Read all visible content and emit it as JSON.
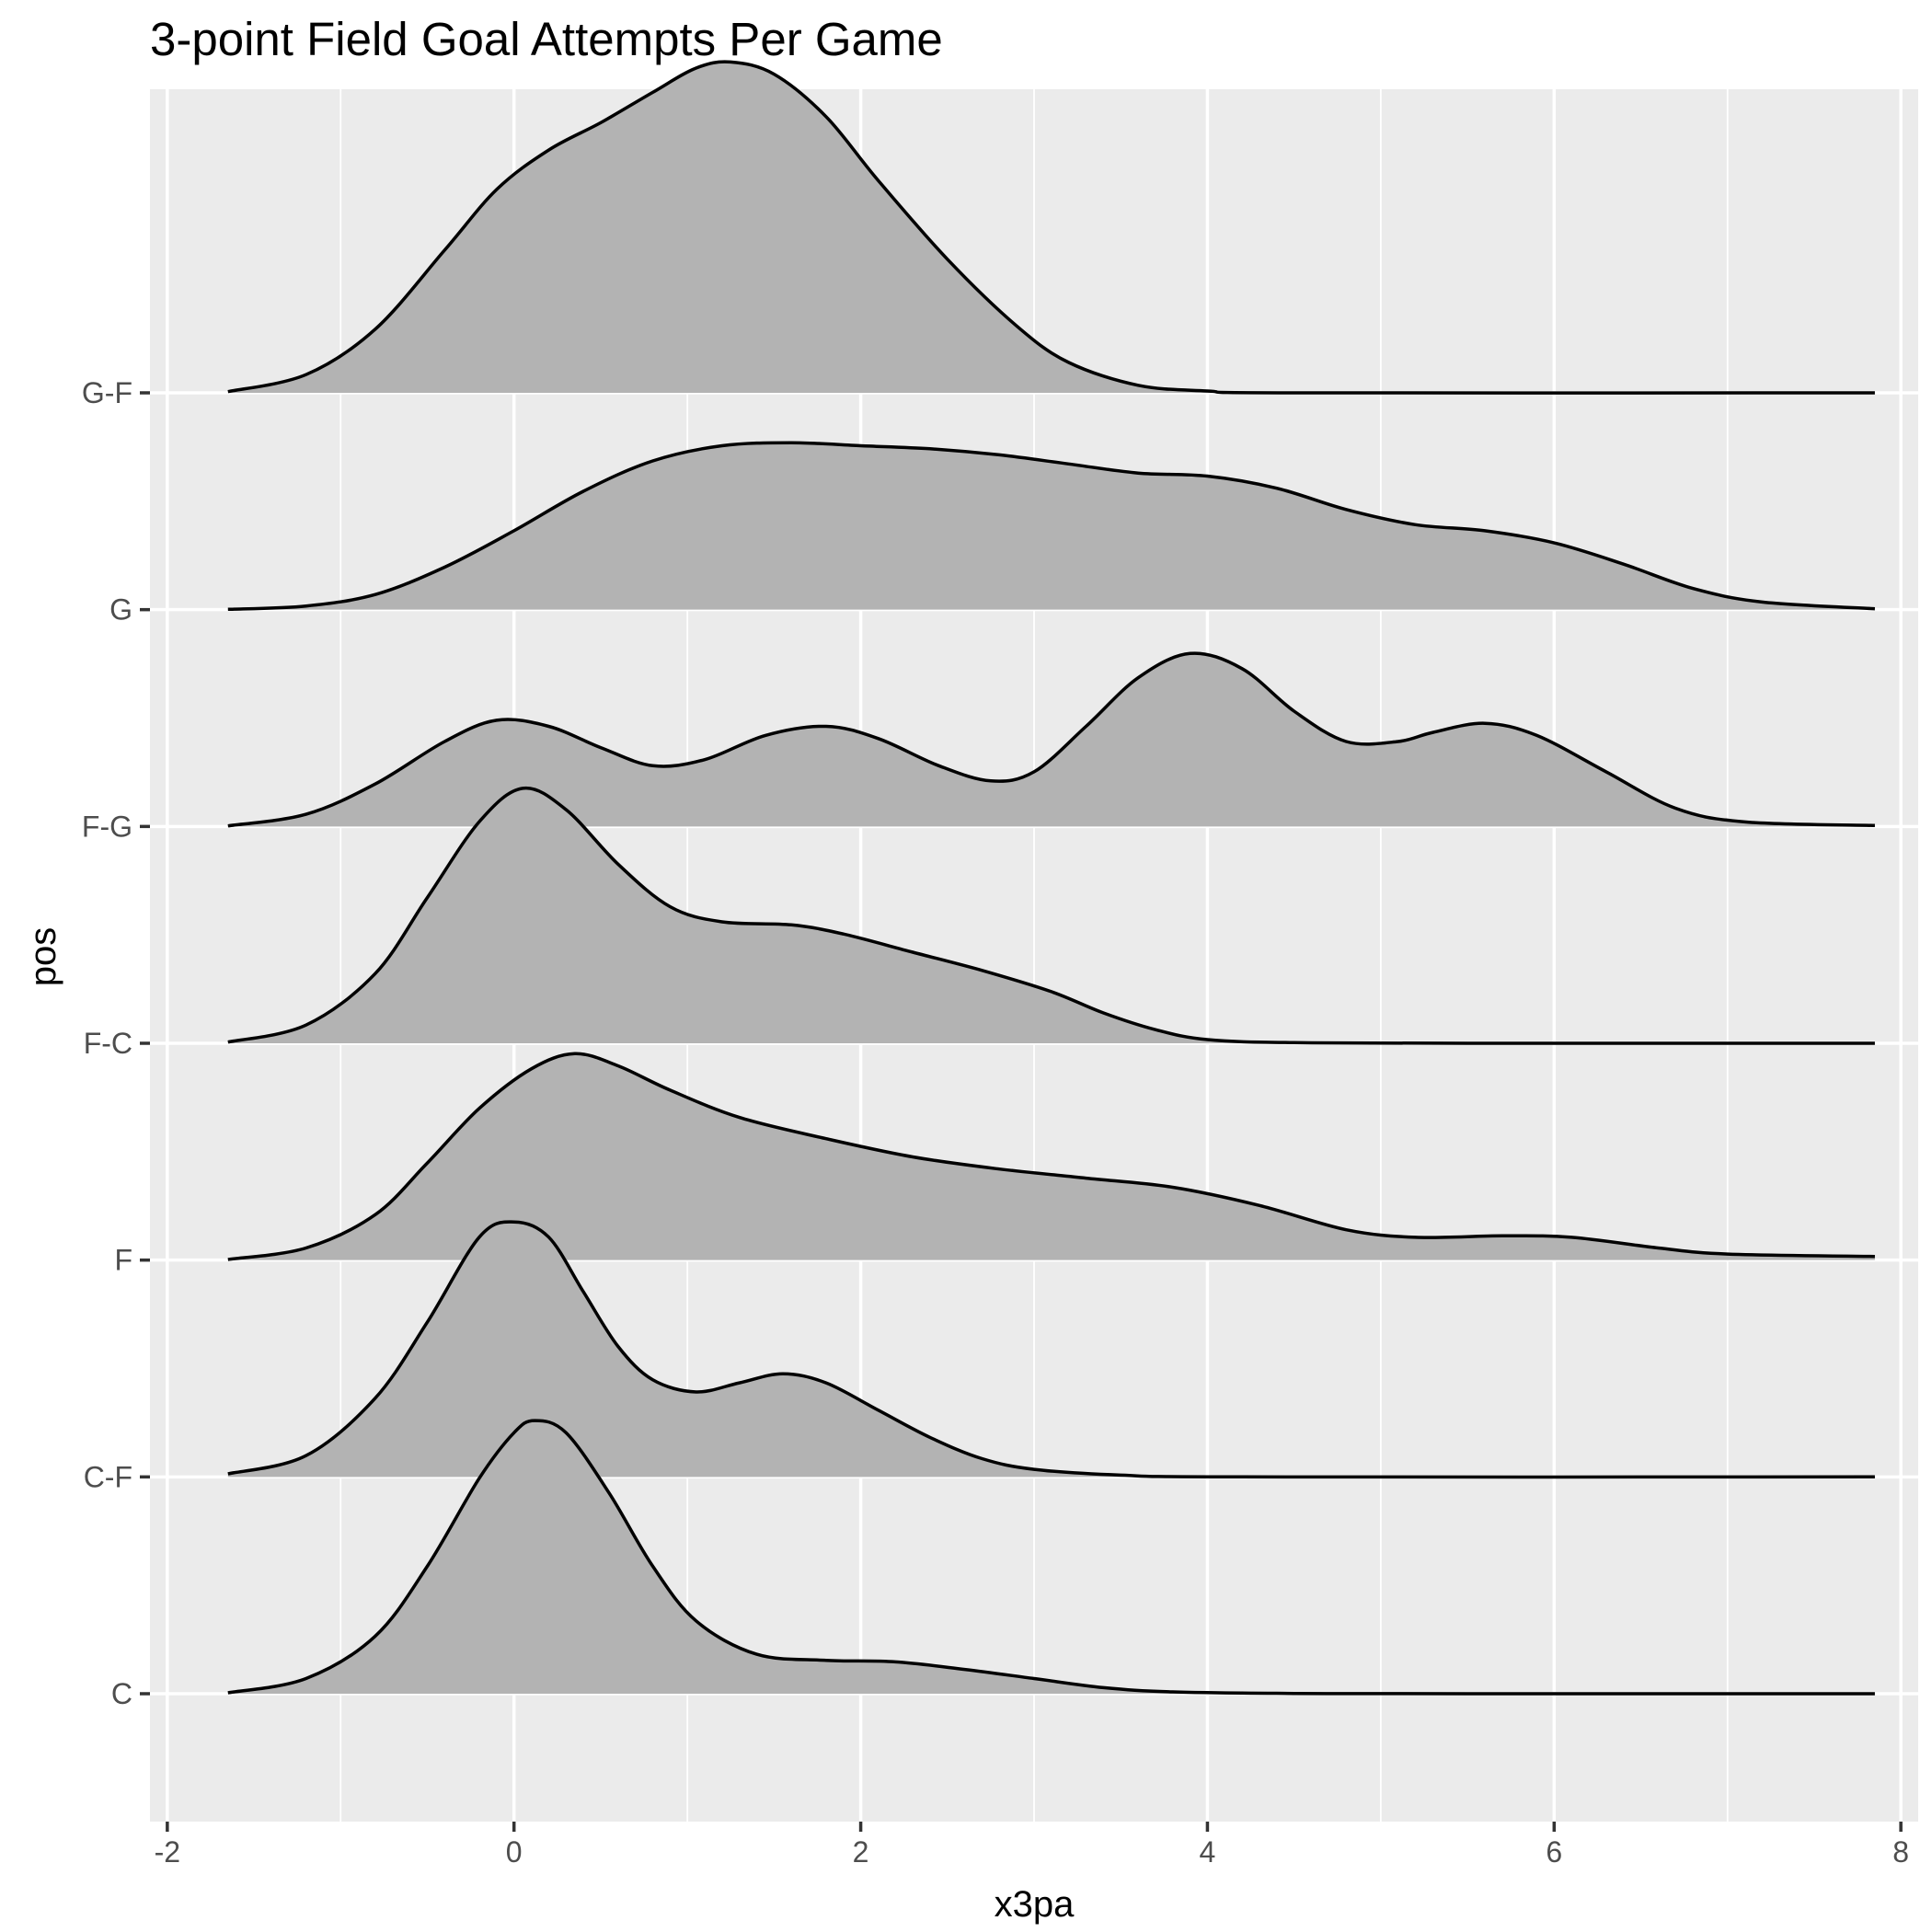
{
  "chart_data": {
    "type": "ridgeline",
    "title": "3-point Field Goal Attempts Per Game",
    "xlabel": "x3pa",
    "ylabel": "pos",
    "xlim": [
      -2.1,
      8.1
    ],
    "x_ticks": [
      -2,
      0,
      2,
      4,
      6,
      8
    ],
    "x_tick_labels": [
      "-2",
      "0",
      "2",
      "4",
      "6",
      "8"
    ],
    "grid": true,
    "background": "#ebebeb",
    "fill_color": "#b3b3b3",
    "line_color": "#000000",
    "categories": [
      "C",
      "C-F",
      "F",
      "F-C",
      "F-G",
      "G",
      "G-F"
    ],
    "density_scale": 1.4,
    "series": [
      {
        "name": "C",
        "points": [
          [
            -1.65,
            0.003
          ],
          [
            -1.2,
            0.05
          ],
          [
            -0.8,
            0.19
          ],
          [
            -0.5,
            0.42
          ],
          [
            -0.2,
            0.71
          ],
          [
            0.0,
            0.86
          ],
          [
            0.12,
            0.9
          ],
          [
            0.3,
            0.86
          ],
          [
            0.55,
            0.66
          ],
          [
            0.8,
            0.42
          ],
          [
            1.05,
            0.24
          ],
          [
            1.4,
            0.13
          ],
          [
            1.8,
            0.11
          ],
          [
            2.2,
            0.105
          ],
          [
            2.6,
            0.08
          ],
          [
            3.0,
            0.05
          ],
          [
            3.4,
            0.02
          ],
          [
            3.8,
            0.006
          ],
          [
            4.5,
            0.001
          ],
          [
            5.5,
            0.0
          ],
          [
            7.85,
            0.0
          ]
        ]
      },
      {
        "name": "C-F",
        "points": [
          [
            -1.65,
            0.01
          ],
          [
            -1.2,
            0.07
          ],
          [
            -0.8,
            0.26
          ],
          [
            -0.5,
            0.51
          ],
          [
            -0.2,
            0.79
          ],
          [
            0.0,
            0.84
          ],
          [
            0.2,
            0.79
          ],
          [
            0.4,
            0.61
          ],
          [
            0.6,
            0.43
          ],
          [
            0.8,
            0.32
          ],
          [
            1.05,
            0.28
          ],
          [
            1.3,
            0.31
          ],
          [
            1.55,
            0.34
          ],
          [
            1.8,
            0.31
          ],
          [
            2.1,
            0.22
          ],
          [
            2.4,
            0.13
          ],
          [
            2.7,
            0.06
          ],
          [
            3.0,
            0.025
          ],
          [
            3.5,
            0.006
          ],
          [
            4.2,
            0.0
          ],
          [
            7.85,
            0.0
          ]
        ]
      },
      {
        "name": "F",
        "points": [
          [
            -1.65,
            0.002
          ],
          [
            -1.2,
            0.04
          ],
          [
            -0.8,
            0.15
          ],
          [
            -0.5,
            0.32
          ],
          [
            -0.2,
            0.5
          ],
          [
            0.1,
            0.63
          ],
          [
            0.35,
            0.68
          ],
          [
            0.6,
            0.64
          ],
          [
            0.9,
            0.56
          ],
          [
            1.3,
            0.47
          ],
          [
            1.8,
            0.4
          ],
          [
            2.3,
            0.34
          ],
          [
            2.8,
            0.3
          ],
          [
            3.3,
            0.27
          ],
          [
            3.8,
            0.24
          ],
          [
            4.3,
            0.18
          ],
          [
            4.8,
            0.1
          ],
          [
            5.2,
            0.075
          ],
          [
            5.7,
            0.08
          ],
          [
            6.1,
            0.075
          ],
          [
            6.6,
            0.04
          ],
          [
            7.0,
            0.02
          ],
          [
            7.85,
            0.012
          ]
        ]
      },
      {
        "name": "F-C",
        "points": [
          [
            -1.65,
            0.004
          ],
          [
            -1.2,
            0.06
          ],
          [
            -0.8,
            0.23
          ],
          [
            -0.5,
            0.48
          ],
          [
            -0.2,
            0.73
          ],
          [
            0.05,
            0.84
          ],
          [
            0.3,
            0.77
          ],
          [
            0.6,
            0.59
          ],
          [
            0.9,
            0.45
          ],
          [
            1.2,
            0.4
          ],
          [
            1.6,
            0.39
          ],
          [
            1.9,
            0.36
          ],
          [
            2.3,
            0.3
          ],
          [
            2.7,
            0.24
          ],
          [
            3.1,
            0.17
          ],
          [
            3.4,
            0.1
          ],
          [
            3.7,
            0.045
          ],
          [
            4.0,
            0.012
          ],
          [
            4.5,
            0.002
          ],
          [
            5.5,
            0.0
          ],
          [
            7.85,
            0.0
          ]
        ]
      },
      {
        "name": "F-G",
        "points": [
          [
            -1.65,
            0.002
          ],
          [
            -1.2,
            0.04
          ],
          [
            -0.8,
            0.14
          ],
          [
            -0.4,
            0.28
          ],
          [
            -0.1,
            0.35
          ],
          [
            0.2,
            0.33
          ],
          [
            0.5,
            0.26
          ],
          [
            0.8,
            0.2
          ],
          [
            1.1,
            0.22
          ],
          [
            1.45,
            0.3
          ],
          [
            1.8,
            0.33
          ],
          [
            2.1,
            0.29
          ],
          [
            2.45,
            0.2
          ],
          [
            2.75,
            0.15
          ],
          [
            3.0,
            0.18
          ],
          [
            3.3,
            0.33
          ],
          [
            3.6,
            0.49
          ],
          [
            3.9,
            0.57
          ],
          [
            4.2,
            0.52
          ],
          [
            4.5,
            0.38
          ],
          [
            4.8,
            0.28
          ],
          [
            5.1,
            0.28
          ],
          [
            5.3,
            0.31
          ],
          [
            5.6,
            0.34
          ],
          [
            5.9,
            0.3
          ],
          [
            6.3,
            0.18
          ],
          [
            6.7,
            0.06
          ],
          [
            7.1,
            0.015
          ],
          [
            7.85,
            0.003
          ]
        ]
      },
      {
        "name": "G",
        "points": [
          [
            -1.65,
            0.001
          ],
          [
            -1.2,
            0.012
          ],
          [
            -0.8,
            0.05
          ],
          [
            -0.4,
            0.14
          ],
          [
            0.0,
            0.26
          ],
          [
            0.4,
            0.39
          ],
          [
            0.8,
            0.49
          ],
          [
            1.2,
            0.54
          ],
          [
            1.6,
            0.55
          ],
          [
            2.0,
            0.54
          ],
          [
            2.4,
            0.53
          ],
          [
            2.8,
            0.51
          ],
          [
            3.2,
            0.48
          ],
          [
            3.6,
            0.45
          ],
          [
            4.0,
            0.44
          ],
          [
            4.4,
            0.4
          ],
          [
            4.8,
            0.33
          ],
          [
            5.2,
            0.28
          ],
          [
            5.6,
            0.26
          ],
          [
            6.0,
            0.22
          ],
          [
            6.4,
            0.15
          ],
          [
            6.8,
            0.07
          ],
          [
            7.2,
            0.025
          ],
          [
            7.85,
            0.003
          ]
        ]
      },
      {
        "name": "G-F",
        "points": [
          [
            -1.65,
            0.004
          ],
          [
            -1.2,
            0.06
          ],
          [
            -0.8,
            0.21
          ],
          [
            -0.4,
            0.47
          ],
          [
            -0.1,
            0.67
          ],
          [
            0.2,
            0.8
          ],
          [
            0.5,
            0.89
          ],
          [
            0.8,
            0.99
          ],
          [
            1.05,
            1.07
          ],
          [
            1.25,
            1.09
          ],
          [
            1.5,
            1.05
          ],
          [
            1.8,
            0.91
          ],
          [
            2.1,
            0.7
          ],
          [
            2.5,
            0.44
          ],
          [
            2.9,
            0.22
          ],
          [
            3.2,
            0.1
          ],
          [
            3.6,
            0.025
          ],
          [
            4.0,
            0.006
          ],
          [
            4.5,
            0.0
          ],
          [
            7.85,
            0.0
          ]
        ]
      }
    ]
  }
}
